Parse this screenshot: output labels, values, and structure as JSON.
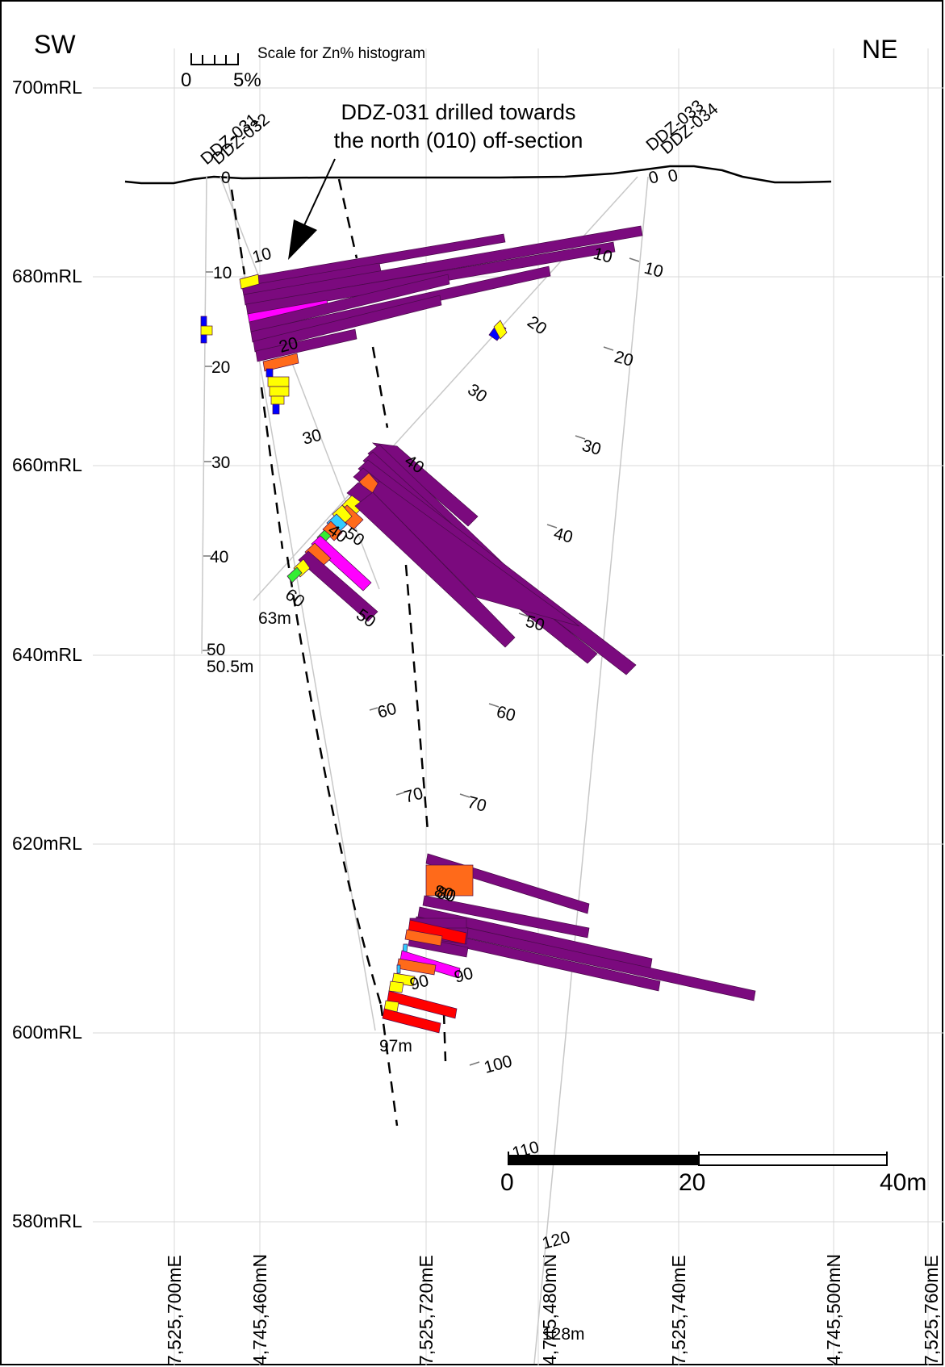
{
  "orientation": {
    "left": "SW",
    "right": "NE"
  },
  "zn_scale": {
    "title": "Scale for Zn% histogram",
    "min_label": "0",
    "max_label": "5%"
  },
  "elevation_labels": [
    "700mRL",
    "680mRL",
    "660mRL",
    "640mRL",
    "620mRL",
    "600mRL",
    "580mRL"
  ],
  "grid_labels": [
    "7,525,700mE",
    "4,745,460mN",
    "7,525,720mE",
    "4,745,480mN",
    "7,525,740mE",
    "4,745,500mN",
    "7,525,760mE"
  ],
  "annotation": {
    "line1": "DDZ-031 drilled towards",
    "line2": "the north (010) off-section"
  },
  "bar_scale": {
    "labels": [
      "0",
      "20",
      "40m"
    ]
  },
  "drillholes": {
    "ddz031": {
      "name": "DDZ-031",
      "collar_label": "0",
      "depth_labels": [
        "10",
        "20",
        "30",
        "40",
        "50"
      ],
      "end_label": "50.5m"
    },
    "ddz032": {
      "name": "DDZ-032",
      "collar_label": "0",
      "depth_labels": [
        "10",
        "20",
        "30",
        "40",
        "50",
        "60"
      ],
      "end_label": "63m"
    },
    "ddz033": {
      "name": "DDZ-033",
      "collar_label": "0",
      "depth_labels": [
        "10",
        "20",
        "30",
        "40",
        "50",
        "60",
        "70",
        "80",
        "90"
      ],
      "end_label": "97m"
    },
    "ddz034": {
      "name": "DDZ-034",
      "collar_label": "0",
      "depth_labels": [
        "10",
        "20",
        "30",
        "40",
        "50",
        "60",
        "70",
        "80",
        "90",
        "100",
        "110",
        "120"
      ],
      "end_label": "128m"
    }
  },
  "colors": {
    "purple": "#7b0a7e",
    "magenta": "#ff00ff",
    "orange": "#ff6a1a",
    "yellow": "#ffff00",
    "red": "#ff0000",
    "green": "#33ee33",
    "blue": "#0000ff",
    "cyan": "#33ccff",
    "grid": "#d9d9d9"
  }
}
